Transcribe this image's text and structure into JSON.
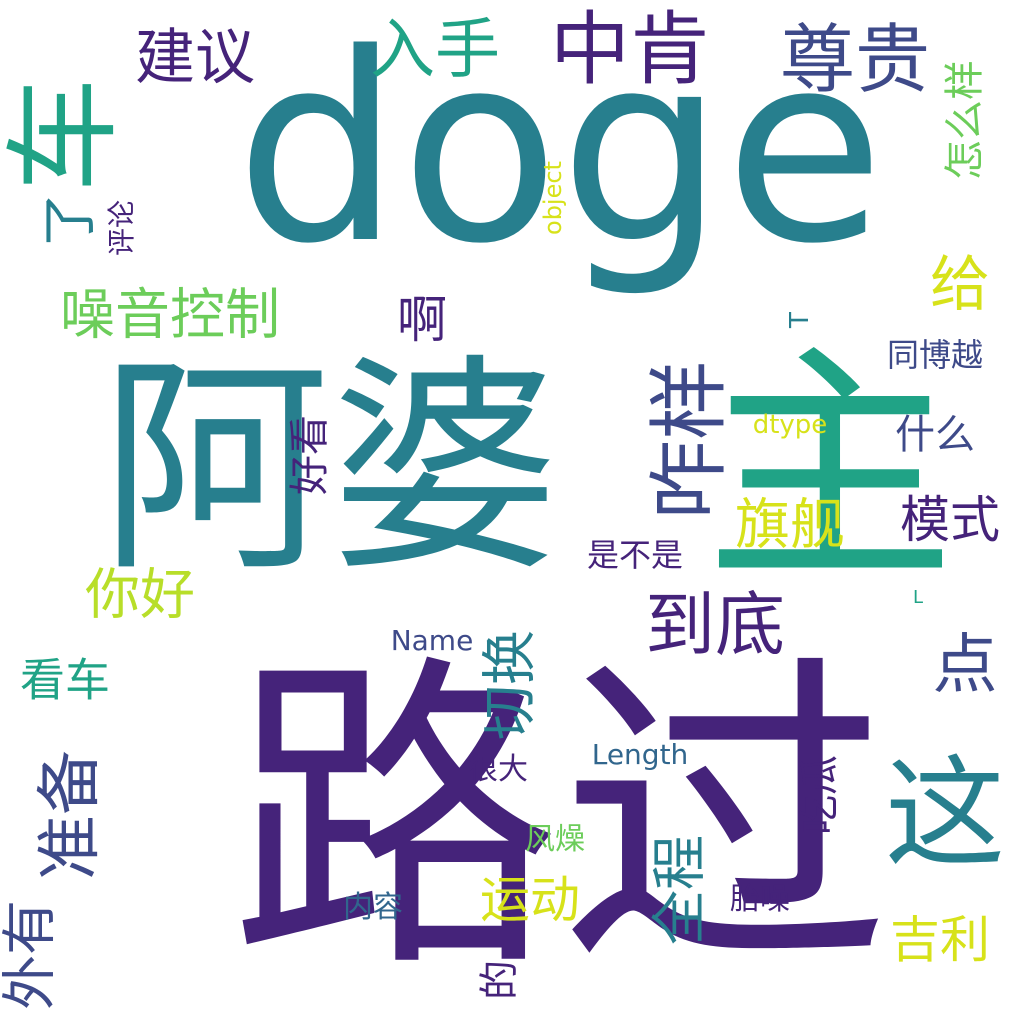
{
  "palette": {
    "purple": "#45237a",
    "indigo": "#3e4a89",
    "blue": "#31668d",
    "teal": "#277f8e",
    "green": "#20a386",
    "lime": "#6ccd5a",
    "yellow": "#d7e21a",
    "paleyellow": "#b8de29"
  },
  "words": [
    {
      "text": "doge",
      "weight": 100
    },
    {
      "text": "路过",
      "weight": 95
    },
    {
      "text": "阿婆",
      "weight": 80
    },
    {
      "text": "主",
      "weight": 70
    },
    {
      "text": "车",
      "weight": 50
    },
    {
      "text": "这",
      "weight": 40
    },
    {
      "text": "咋样",
      "weight": 35
    },
    {
      "text": "中肯",
      "weight": 30
    },
    {
      "text": "尊贵",
      "weight": 30
    },
    {
      "text": "入手",
      "weight": 28
    },
    {
      "text": "到底",
      "weight": 28
    },
    {
      "text": "准备",
      "weight": 28
    },
    {
      "text": "给",
      "weight": 27
    },
    {
      "text": "建议",
      "weight": 26
    },
    {
      "text": "点",
      "weight": 26
    },
    {
      "text": "全程",
      "weight": 25
    },
    {
      "text": "切换",
      "weight": 25
    },
    {
      "text": "噪音控制",
      "weight": 24
    },
    {
      "text": "旗舰",
      "weight": 24
    },
    {
      "text": "模式",
      "weight": 24
    },
    {
      "text": "外有",
      "weight": 24
    },
    {
      "text": "你好",
      "weight": 23
    },
    {
      "text": "运动",
      "weight": 23
    },
    {
      "text": "吉利",
      "weight": 23
    },
    {
      "text": "看车",
      "weight": 22
    },
    {
      "text": "了",
      "weight": 22
    },
    {
      "text": "啊",
      "weight": 22
    },
    {
      "text": "怎么样",
      "weight": 21
    },
    {
      "text": "好看",
      "weight": 20
    },
    {
      "text": "什么",
      "weight": 18
    },
    {
      "text": "吃瓜",
      "weight": 18
    },
    {
      "text": "的",
      "weight": 18
    },
    {
      "text": "同博越",
      "weight": 15
    },
    {
      "text": "是不是",
      "weight": 15
    },
    {
      "text": "很大",
      "weight": 15
    },
    {
      "text": "风燥",
      "weight": 15
    },
    {
      "text": "胎噪",
      "weight": 15
    },
    {
      "text": "内容",
      "weight": 15
    },
    {
      "text": "评论",
      "weight": 14
    },
    {
      "text": "Name",
      "weight": 14
    },
    {
      "text": "Length",
      "weight": 14
    },
    {
      "text": "dtype",
      "weight": 13
    },
    {
      "text": "object",
      "weight": 12
    },
    {
      "text": "T",
      "weight": 12
    },
    {
      "text": "L",
      "weight": 12
    }
  ]
}
